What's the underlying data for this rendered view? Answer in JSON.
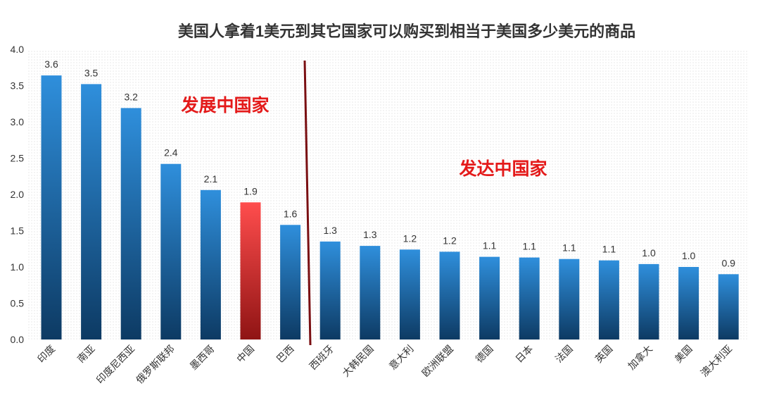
{
  "chart_data": {
    "type": "bar",
    "title": "美国人拿着1美元到其它国家可以购买到相当于美国多少美元的商品",
    "categories": [
      "印度",
      "南亚",
      "印度尼西亚",
      "俄罗斯联邦",
      "墨西哥",
      "中国",
      "巴西",
      "西班牙",
      "大韩民国",
      "意大利",
      "欧洲联盟",
      "德国",
      "日本",
      "法国",
      "英国",
      "加拿大",
      "美国",
      "澳大利亚"
    ],
    "values": [
      3.64,
      3.52,
      3.19,
      2.42,
      2.06,
      1.89,
      1.58,
      1.35,
      1.29,
      1.24,
      1.21,
      1.14,
      1.13,
      1.11,
      1.09,
      1.04,
      1.0,
      0.9
    ],
    "data_labels": [
      "3.6",
      "3.5",
      "3.2",
      "2.4",
      "2.1",
      "1.9",
      "1.6",
      "1.3",
      "1.3",
      "1.2",
      "1.2",
      "1.1",
      "1.1",
      "1.1",
      "1.1",
      "1.0",
      "1.0",
      "0.9"
    ],
    "ylim": [
      0,
      4.0
    ],
    "yticks": [
      "0.0",
      "0.5",
      "1.0",
      "1.5",
      "2.0",
      "2.5",
      "3.0",
      "3.5",
      "4.0"
    ],
    "highlight_category": "中国",
    "grid": false,
    "annotations": {
      "developing_label": "发展中国家",
      "developed_label": "发达中国家"
    },
    "colors": {
      "bar_top": "#2f8fdc",
      "bar_bottom": "#0d3a63",
      "highlight_top": "#ff4d4d",
      "highlight_bottom": "#8f1414",
      "annotation": "#e41a1a",
      "divider": "#7a0f12",
      "text": "#333333"
    }
  }
}
